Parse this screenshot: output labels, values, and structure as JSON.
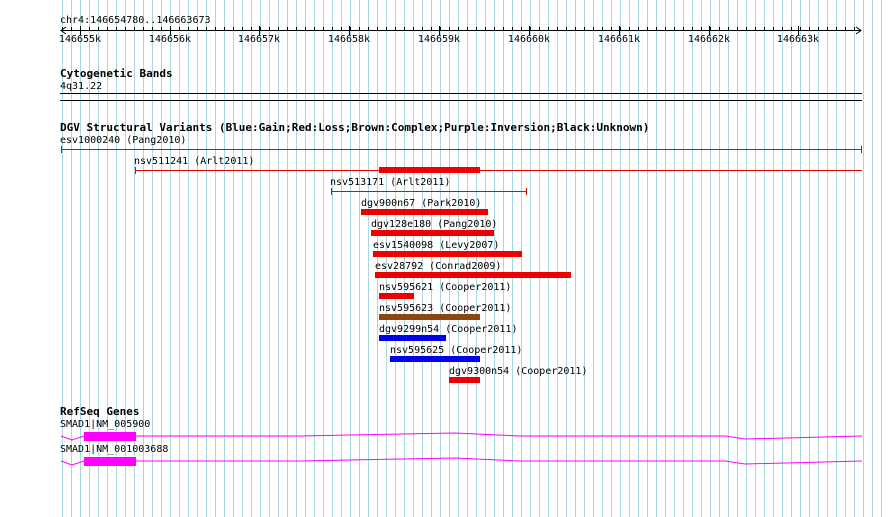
{
  "ruler": {
    "landmark": "chr4:146654780..146663673",
    "ticks": [
      "146655k",
      "146656k",
      "146657k",
      "146658k",
      "146659k",
      "146660k",
      "146661k",
      "146662k",
      "146663k"
    ]
  },
  "cytoband": {
    "title": "Cytogenetic Bands",
    "band": "4q31.22"
  },
  "dgv": {
    "title": "DGV Structural Variants (Blue:Gain;Red:Loss;Brown:Complex;Purple:Inversion;Black:Unknown)",
    "variants": [
      {
        "label": "esv1000240 (Pang2010)",
        "color": "#ee0000"
      },
      {
        "label": "nsv511241 (Arlt2011)",
        "color": "#ee0000"
      },
      {
        "label": "nsv513171 (Arlt2011)",
        "color": "#ee0000"
      },
      {
        "label": "dgv900n67 (Park2010)",
        "color": "#ee0000"
      },
      {
        "label": "dgv128e180 (Pang2010)",
        "color": "#ee0000"
      },
      {
        "label": "esv1540098 (Levy2007)",
        "color": "#ee0000"
      },
      {
        "label": "esv28792 (Conrad2009)",
        "color": "#ee0000"
      },
      {
        "label": "nsv595621 (Cooper2011)",
        "color": "#ee0000"
      },
      {
        "label": "nsv595623 (Cooper2011)",
        "color": "#8b4513"
      },
      {
        "label": "dgv9299n54 (Cooper2011)",
        "color": "#0000ee"
      },
      {
        "label": "nsv595625 (Cooper2011)",
        "color": "#0000ee"
      },
      {
        "label": "dgv9300n54 (Cooper2011)",
        "color": "#ee0000"
      }
    ]
  },
  "refseq": {
    "title": "RefSeq Genes",
    "genes": [
      {
        "label": "SMAD1|NM_005900",
        "color": "#ff00ff"
      },
      {
        "label": "SMAD1|NM_001003688",
        "color": "#ff00ff"
      }
    ]
  },
  "colors": {
    "grid": "#a8d8e0",
    "ruler": "#000000",
    "gene": "#ff00ff"
  }
}
